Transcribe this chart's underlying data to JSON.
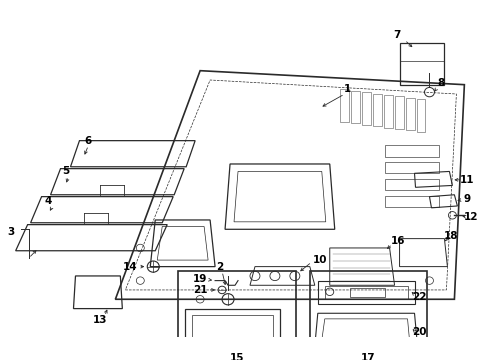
{
  "bg_color": "#ffffff",
  "line_color": "#2a2a2a",
  "fig_width": 4.89,
  "fig_height": 3.6,
  "dpi": 100
}
